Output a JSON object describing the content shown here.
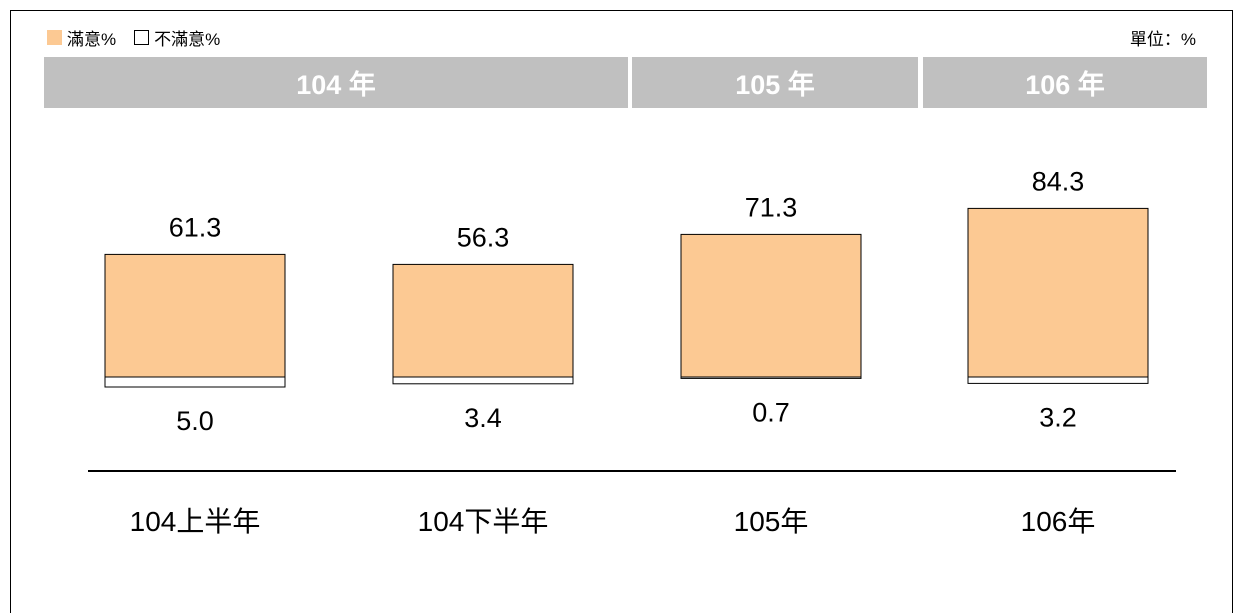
{
  "legend": {
    "satisfied_label": "滿意%",
    "unsatisfied_label": "不滿意%"
  },
  "unit_label": "單位：%",
  "year_headers": [
    "104 年",
    "105 年",
    "106 年"
  ],
  "colors": {
    "satisfied": "#fcc993",
    "unsatisfied": "#ffffff",
    "header_bg": "#c0c0c0",
    "header_text": "#ffffff"
  },
  "chart_data": {
    "type": "bar",
    "categories": [
      "104上半年",
      "104下半年",
      "105年",
      "106年"
    ],
    "series": [
      {
        "name": "滿意%",
        "values": [
          61.3,
          56.3,
          71.3,
          84.3
        ],
        "labels": [
          "61.3",
          "56.3",
          "71.3",
          "84.3"
        ]
      },
      {
        "name": "不滿意%",
        "values": [
          5.0,
          3.4,
          0.7,
          3.2
        ],
        "labels": [
          "5.0",
          "3.4",
          "0.7",
          "3.2"
        ]
      }
    ],
    "legend_position": "top-left",
    "grid": false
  }
}
